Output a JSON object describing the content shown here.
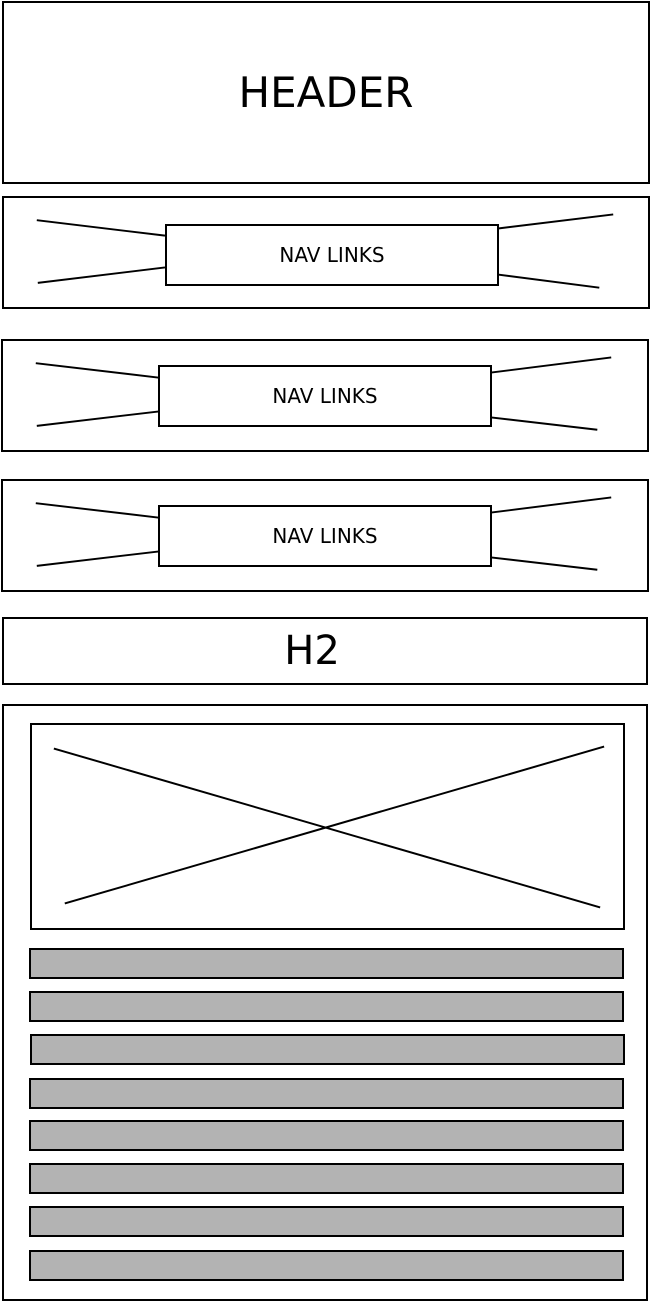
{
  "header": {
    "title": "HEADER"
  },
  "nav_bars": [
    {
      "label": "NAV LINKS"
    },
    {
      "label": "NAV LINKS"
    },
    {
      "label": "NAV LINKS"
    }
  ],
  "section": {
    "heading": "H2"
  },
  "content": {
    "text_line_count": 8
  }
}
